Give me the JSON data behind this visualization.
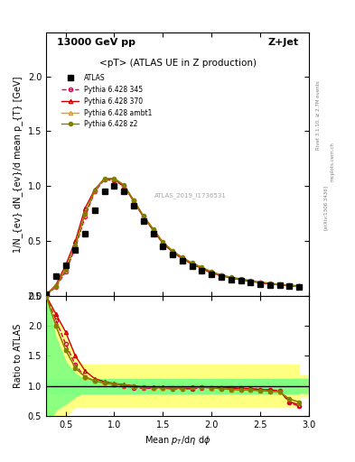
{
  "title_top": "13000 GeV pp",
  "title_right": "Z+Jet",
  "plot_title": "<pT> (ATLAS UE in Z production)",
  "xlabel": "Mean p_{T}/d\\eta d\\phi",
  "ylabel_main": "1/N_{ev} dN_{ev}/d mean p_{T} [GeV]",
  "ylabel_ratio": "Ratio to ATLAS",
  "watermark": "ATLAS_2019_I1736531",
  "rivet_label": "Rivet 3.1.10, ≥ 2.7M events",
  "arxiv_label": "[arXiv:1306.3436]",
  "mcplots_label": "mcplots.cern.ch",
  "atlas_x": [
    0.3,
    0.4,
    0.5,
    0.6,
    0.7,
    0.8,
    0.9,
    1.0,
    1.1,
    1.2,
    1.3,
    1.4,
    1.5,
    1.6,
    1.7,
    1.8,
    1.9,
    2.0,
    2.1,
    2.2,
    2.3,
    2.4,
    2.5,
    2.6,
    2.7,
    2.8,
    2.9
  ],
  "atlas_y": [
    0.02,
    0.18,
    0.28,
    0.42,
    0.57,
    0.78,
    0.95,
    1.0,
    0.95,
    0.82,
    0.68,
    0.57,
    0.45,
    0.38,
    0.32,
    0.27,
    0.23,
    0.2,
    0.17,
    0.15,
    0.14,
    0.12,
    0.11,
    0.1,
    0.095,
    0.09,
    0.085
  ],
  "py345_x": [
    0.3,
    0.4,
    0.5,
    0.6,
    0.7,
    0.8,
    0.9,
    1.0,
    1.1,
    1.2,
    1.3,
    1.4,
    1.5,
    1.6,
    1.7,
    1.8,
    1.9,
    2.0,
    2.1,
    2.2,
    2.3,
    2.4,
    2.5,
    2.6,
    2.7,
    2.8,
    2.9
  ],
  "py345_y": [
    0.01,
    0.08,
    0.22,
    0.44,
    0.72,
    0.95,
    1.06,
    1.05,
    1.0,
    0.87,
    0.72,
    0.6,
    0.48,
    0.4,
    0.34,
    0.29,
    0.25,
    0.21,
    0.185,
    0.165,
    0.148,
    0.133,
    0.12,
    0.11,
    0.1,
    0.093,
    0.088
  ],
  "py370_x": [
    0.3,
    0.4,
    0.5,
    0.6,
    0.7,
    0.8,
    0.9,
    1.0,
    1.1,
    1.2,
    1.3,
    1.4,
    1.5,
    1.6,
    1.7,
    1.8,
    1.9,
    2.0,
    2.1,
    2.2,
    2.3,
    2.4,
    2.5,
    2.6,
    2.7,
    2.8,
    2.9
  ],
  "py370_y": [
    0.01,
    0.1,
    0.28,
    0.5,
    0.8,
    0.97,
    1.07,
    1.06,
    1.0,
    0.86,
    0.72,
    0.6,
    0.48,
    0.4,
    0.34,
    0.29,
    0.25,
    0.21,
    0.185,
    0.165,
    0.148,
    0.133,
    0.12,
    0.11,
    0.1,
    0.093,
    0.088
  ],
  "pyambt1_x": [
    0.3,
    0.4,
    0.5,
    0.6,
    0.7,
    0.8,
    0.9,
    1.0,
    1.1,
    1.2,
    1.3,
    1.4,
    1.5,
    1.6,
    1.7,
    1.8,
    1.9,
    2.0,
    2.1,
    2.2,
    2.3,
    2.4,
    2.5,
    2.6,
    2.7,
    2.8,
    2.9
  ],
  "pyambt1_y": [
    0.01,
    0.09,
    0.24,
    0.46,
    0.75,
    0.96,
    1.07,
    1.07,
    1.01,
    0.87,
    0.73,
    0.61,
    0.49,
    0.41,
    0.35,
    0.3,
    0.26,
    0.22,
    0.19,
    0.17,
    0.155,
    0.14,
    0.126,
    0.115,
    0.105,
    0.098,
    0.092
  ],
  "pyz2_x": [
    0.3,
    0.4,
    0.5,
    0.6,
    0.7,
    0.8,
    0.9,
    1.0,
    1.1,
    1.2,
    1.3,
    1.4,
    1.5,
    1.6,
    1.7,
    1.8,
    1.9,
    2.0,
    2.1,
    2.2,
    2.3,
    2.4,
    2.5,
    2.6,
    2.7,
    2.8,
    2.9
  ],
  "pyz2_y": [
    0.01,
    0.09,
    0.24,
    0.46,
    0.75,
    0.96,
    1.07,
    1.07,
    1.01,
    0.87,
    0.73,
    0.61,
    0.49,
    0.41,
    0.35,
    0.3,
    0.26,
    0.22,
    0.19,
    0.17,
    0.155,
    0.14,
    0.126,
    0.115,
    0.105,
    0.098,
    0.092
  ],
  "ratio_345_y": [
    2.5,
    2.1,
    1.7,
    1.35,
    1.15,
    1.08,
    1.05,
    1.02,
    1.0,
    0.97,
    0.96,
    0.96,
    0.96,
    0.95,
    0.95,
    0.95,
    0.97,
    0.97,
    0.97,
    0.97,
    0.96,
    0.95,
    0.94,
    0.93,
    0.92,
    0.72,
    0.66
  ],
  "ratio_370_y": [
    2.5,
    2.2,
    1.9,
    1.5,
    1.25,
    1.12,
    1.07,
    1.04,
    1.02,
    1.0,
    0.98,
    0.98,
    0.98,
    0.97,
    0.96,
    0.97,
    0.98,
    0.97,
    0.97,
    0.96,
    0.96,
    0.95,
    0.94,
    0.93,
    0.91,
    0.74,
    0.68
  ],
  "ratio_ambt1_y": [
    2.5,
    2.0,
    1.6,
    1.3,
    1.15,
    1.08,
    1.05,
    1.03,
    1.01,
    0.99,
    0.98,
    0.97,
    0.97,
    0.97,
    0.97,
    0.98,
    0.98,
    0.97,
    0.95,
    0.94,
    0.93,
    0.93,
    0.92,
    0.91,
    0.9,
    0.78,
    0.73
  ],
  "ratio_z2_y": [
    2.5,
    2.0,
    1.6,
    1.3,
    1.15,
    1.08,
    1.05,
    1.03,
    1.01,
    0.99,
    0.98,
    0.97,
    0.97,
    0.97,
    0.97,
    0.98,
    0.98,
    0.97,
    0.95,
    0.94,
    0.93,
    0.93,
    0.92,
    0.91,
    0.9,
    0.78,
    0.73
  ],
  "color_345": "#e0004c",
  "color_370": "#cc0000",
  "color_ambt1": "#e8a000",
  "color_z2": "#808000",
  "color_atlas": "#000000",
  "band_green_inner": 0.1,
  "band_yellow_outer": 0.3,
  "xlim": [
    0.3,
    3.0
  ],
  "ylim_main": [
    0.0,
    2.4
  ],
  "ylim_ratio": [
    0.5,
    2.5
  ]
}
